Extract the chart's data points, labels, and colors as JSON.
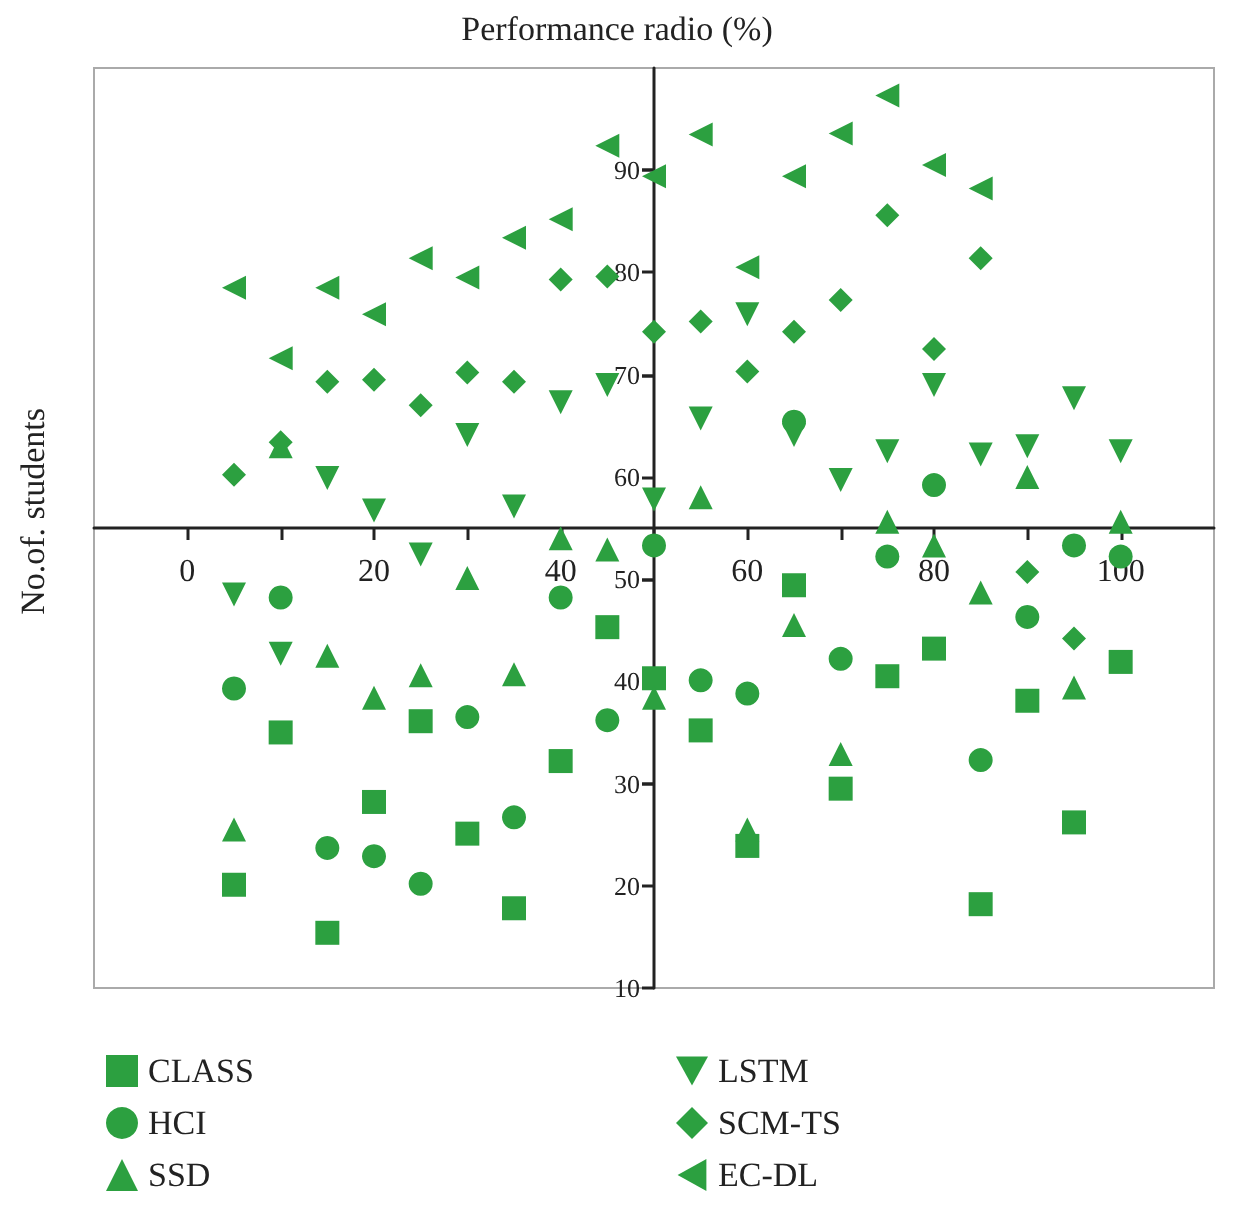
{
  "chart_data": {
    "type": "scatter",
    "xlabel": "Performance radio (%)",
    "ylabel": "No.of. students",
    "xlim": [
      -10,
      110
    ],
    "ylim": [
      10,
      100
    ],
    "xticks": [
      0,
      20,
      40,
      60,
      80,
      100
    ],
    "yticks": [
      10,
      20,
      30,
      40,
      50,
      60,
      70,
      80,
      90
    ],
    "grid": false,
    "legend": "bottom",
    "series": [
      {
        "name": "CLASS",
        "color": "#2ca040",
        "marker": "square",
        "x": [
          5,
          10,
          15,
          20,
          25,
          30,
          35,
          40,
          45,
          50,
          55,
          60,
          65,
          70,
          75,
          80,
          85,
          90,
          95,
          100
        ],
        "values": [
          20.1,
          35.0,
          15.4,
          28.2,
          36.1,
          25.1,
          17.8,
          32.2,
          45.3,
          40.3,
          35.2,
          23.9,
          49.4,
          29.5,
          40.5,
          43.2,
          18.2,
          38.1,
          26.2,
          41.9
        ]
      },
      {
        "name": "HCI",
        "color": "#2ca040",
        "marker": "circle",
        "x": [
          5,
          10,
          15,
          20,
          25,
          30,
          35,
          40,
          45,
          50,
          55,
          60,
          65,
          70,
          75,
          80,
          85,
          90,
          95,
          100
        ],
        "values": [
          39.3,
          48.2,
          23.7,
          22.9,
          20.2,
          36.5,
          26.7,
          48.2,
          36.2,
          53.3,
          40.1,
          38.8,
          65.4,
          42.2,
          52.2,
          59.2,
          32.3,
          46.3,
          53.3,
          52.2
        ]
      },
      {
        "name": "SSD",
        "color": "#2ca040",
        "marker": "triangle",
        "x": [
          5,
          10,
          15,
          20,
          25,
          30,
          35,
          40,
          45,
          50,
          55,
          60,
          65,
          70,
          75,
          80,
          85,
          90,
          95,
          100
        ],
        "values": [
          25.5,
          63.0,
          42.5,
          38.4,
          40.6,
          50.1,
          40.7,
          54.0,
          52.9,
          38.4,
          58.0,
          25.5,
          45.5,
          32.9,
          55.6,
          53.3,
          48.7,
          60.0,
          39.4,
          55.6
        ]
      },
      {
        "name": "LSTM",
        "color": "#2ca040",
        "marker": "triangle-down",
        "x": [
          5,
          10,
          15,
          20,
          25,
          30,
          35,
          40,
          45,
          50,
          55,
          60,
          65,
          70,
          75,
          80,
          85,
          90,
          95,
          100
        ],
        "values": [
          48.5,
          42.7,
          59.9,
          56.7,
          52.4,
          64.1,
          57.1,
          67.3,
          69.0,
          57.8,
          65.7,
          75.9,
          64.1,
          59.7,
          62.5,
          69.0,
          62.2,
          63.0,
          67.7,
          62.5
        ]
      },
      {
        "name": "SCM-TS",
        "color": "#2ca040",
        "marker": "diamond",
        "x": [
          5,
          10,
          15,
          20,
          25,
          30,
          35,
          40,
          45,
          50,
          55,
          60,
          65,
          70,
          75,
          80,
          85,
          90,
          95
        ],
        "values": [
          60.2,
          63.4,
          69.3,
          69.5,
          67.0,
          70.2,
          69.3,
          79.3,
          79.6,
          74.2,
          75.2,
          70.3,
          74.2,
          77.3,
          85.6,
          72.5,
          81.4,
          50.7,
          44.2
        ]
      },
      {
        "name": "EC-DL",
        "color": "#2ca040",
        "marker": "triangle-left",
        "x": [
          5,
          10,
          15,
          20,
          25,
          30,
          35,
          40,
          45,
          50,
          55,
          60,
          65,
          70,
          75,
          80,
          85
        ],
        "values": [
          78.5,
          71.6,
          78.5,
          75.9,
          81.4,
          79.5,
          83.4,
          85.2,
          92.4,
          89.4,
          93.5,
          80.5,
          89.4,
          93.6,
          97.3,
          90.5,
          88.2
        ]
      }
    ]
  }
}
